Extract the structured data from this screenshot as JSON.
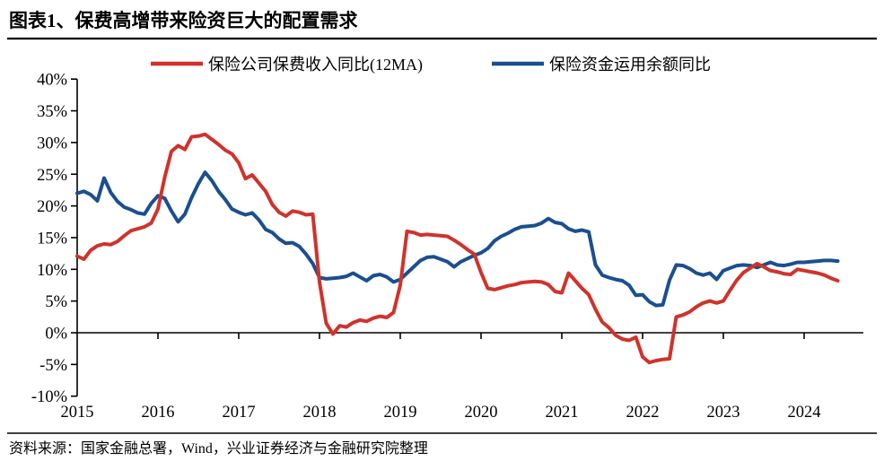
{
  "title": "图表1、保费高增带来险资巨大的配置需求",
  "source": "资料来源：国家金融总署，Wind，兴业证券经济与金融研究院整理",
  "colors": {
    "red_series": "#CF332B",
    "blue_series": "#1B4F8F",
    "axis": "#000000"
  },
  "chart_data": {
    "type": "line",
    "title": "图表1、保费高增带来险资巨大的配置需求",
    "xlabel": "",
    "ylabel": "",
    "ylim": [
      -10,
      40
    ],
    "grid": false,
    "legend_position": "top",
    "x_frequency": "monthly",
    "x_start": "2015-01",
    "x_end": "2024-06",
    "x_year_ticks": [
      "2015",
      "2016",
      "2017",
      "2018",
      "2019",
      "2020",
      "2021",
      "2022",
      "2023",
      "2024"
    ],
    "y_ticks": [
      {
        "label": "40%",
        "value": 40
      },
      {
        "label": "35%",
        "value": 35
      },
      {
        "label": "30%",
        "value": 30
      },
      {
        "label": "25%",
        "value": 25
      },
      {
        "label": "20%",
        "value": 20
      },
      {
        "label": "15%",
        "value": 15
      },
      {
        "label": "10%",
        "value": 10
      },
      {
        "label": "5%",
        "value": 5
      },
      {
        "label": "0%",
        "value": 0
      },
      {
        "label": "-5%",
        "value": -5
      },
      {
        "label": "-10%",
        "value": -10
      }
    ],
    "series": [
      {
        "id": "premium-income-yoy-12ma",
        "name": "保险公司保费收入同比(12MA)",
        "color": "#CF332B",
        "unit": "%",
        "values": [
          12.1,
          11.6,
          13.0,
          13.7,
          14.0,
          13.9,
          14.4,
          15.3,
          16.1,
          16.4,
          16.7,
          17.3,
          19.5,
          24.5,
          28.6,
          29.5,
          28.9,
          30.9,
          31.0,
          31.3,
          30.5,
          29.7,
          28.8,
          28.2,
          26.8,
          24.3,
          24.9,
          23.6,
          22.3,
          20.2,
          19.0,
          18.4,
          19.2,
          19.0,
          18.6,
          18.7,
          8.0,
          1.5,
          -0.2,
          1.1,
          0.9,
          1.6,
          2.0,
          1.8,
          2.3,
          2.6,
          2.4,
          3.2,
          7.5,
          16.0,
          15.8,
          15.4,
          15.5,
          15.4,
          15.3,
          15.2,
          14.6,
          13.9,
          13.1,
          12.4,
          9.5,
          7.0,
          6.8,
          7.1,
          7.4,
          7.6,
          7.9,
          8.0,
          8.1,
          8.0,
          7.6,
          6.5,
          6.3,
          9.4,
          8.2,
          7.0,
          6.0,
          3.7,
          1.7,
          0.8,
          -0.4,
          -1.0,
          -1.2,
          -0.7,
          -3.8,
          -4.7,
          -4.4,
          -4.2,
          -4.1,
          2.5,
          2.8,
          3.3,
          4.1,
          4.7,
          5.0,
          4.7,
          5.0,
          6.7,
          8.3,
          9.5,
          10.2,
          10.9,
          10.4,
          9.8,
          9.6,
          9.3,
          9.2,
          10.0,
          9.8,
          9.6,
          9.4,
          9.1,
          8.6,
          8.2
        ]
      },
      {
        "id": "funds-balance-yoy",
        "name": "保险资金运用余额同比",
        "color": "#1B4F8F",
        "unit": "%",
        "values": [
          22.0,
          22.3,
          21.8,
          20.8,
          24.4,
          22.1,
          20.7,
          19.8,
          19.4,
          18.9,
          18.7,
          20.4,
          21.6,
          21.2,
          19.2,
          17.5,
          18.7,
          21.3,
          23.5,
          25.3,
          24.0,
          22.3,
          21.0,
          19.5,
          19.0,
          18.6,
          18.9,
          17.8,
          16.3,
          15.8,
          14.8,
          14.1,
          14.2,
          13.6,
          12.4,
          10.9,
          8.7,
          8.5,
          8.6,
          8.7,
          8.9,
          9.4,
          8.8,
          8.2,
          9.0,
          9.2,
          8.8,
          8.0,
          8.4,
          9.4,
          10.4,
          11.4,
          11.9,
          12.0,
          11.6,
          11.2,
          10.4,
          11.2,
          11.7,
          12.2,
          12.6,
          13.3,
          14.5,
          15.2,
          15.7,
          16.3,
          16.7,
          16.8,
          16.9,
          17.3,
          18.0,
          17.4,
          17.2,
          16.4,
          16.0,
          16.2,
          15.9,
          10.7,
          9.1,
          8.7,
          8.4,
          8.2,
          7.5,
          5.9,
          6.0,
          4.9,
          4.3,
          4.4,
          8.3,
          10.7,
          10.6,
          10.1,
          9.4,
          9.1,
          9.4,
          8.4,
          9.8,
          10.2,
          10.6,
          10.7,
          10.6,
          10.3,
          10.7,
          11.1,
          10.7,
          10.6,
          10.8,
          11.1,
          11.1,
          11.2,
          11.3,
          11.4,
          11.4,
          11.3
        ]
      }
    ]
  }
}
